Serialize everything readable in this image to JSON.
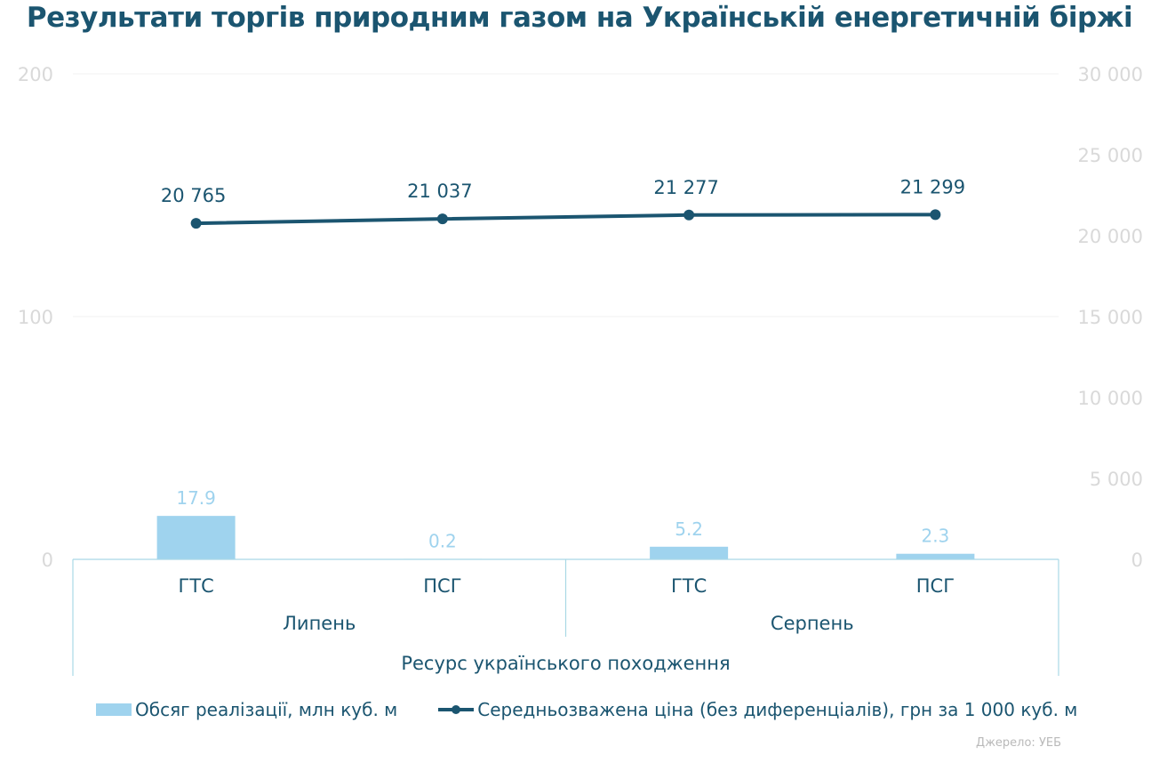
{
  "title": "Результати торгів природним газом на Українській енергетичній біржі",
  "source": "Джерело: УЕБ",
  "legend": {
    "bar_label": "Обсяг реалізації, млн куб. м",
    "line_label": "Середньозважена ціна (без диференціалів), грн за 1 000 куб. м"
  },
  "colors": {
    "bar": "#9fd3ee",
    "line": "#1b5570",
    "axis_text": "#d9d9d9",
    "title": "#1b5570",
    "bar_label": "#9fd3ee"
  },
  "chart_data": {
    "type": "bar",
    "categories": [
      "ГТС",
      "ПСГ",
      "ГТС",
      "ПСГ"
    ],
    "groups": [
      {
        "label": "Липень",
        "categories": [
          "ГТС",
          "ПСГ"
        ]
      },
      {
        "label": "Серпень",
        "categories": [
          "ГТС",
          "ПСГ"
        ]
      }
    ],
    "outer_group": "Ресурс українського походження",
    "series": [
      {
        "name": "Обсяг реалізації, млн куб. м",
        "type": "bar",
        "axis": "left",
        "values": [
          17.9,
          0.2,
          5.2,
          2.3
        ],
        "labels": [
          "17.9",
          "0.2",
          "5.2",
          "2.3"
        ]
      },
      {
        "name": "Середньозважена ціна (без диференціалів), грн за 1 000 куб. м",
        "type": "line",
        "axis": "right",
        "values": [
          20765,
          21037,
          21277,
          21299
        ],
        "labels": [
          "20 765",
          "21 037",
          "21 277",
          "21 299"
        ]
      }
    ],
    "y_left": {
      "ylim": [
        0,
        200
      ],
      "ticks": [
        "0",
        "100",
        "200"
      ]
    },
    "y_right": {
      "ylim": [
        0,
        30000
      ],
      "ticks": [
        "0",
        "5 000",
        "10 000",
        "15 000",
        "20 000",
        "25 000",
        "30 000"
      ]
    },
    "grid": true
  }
}
